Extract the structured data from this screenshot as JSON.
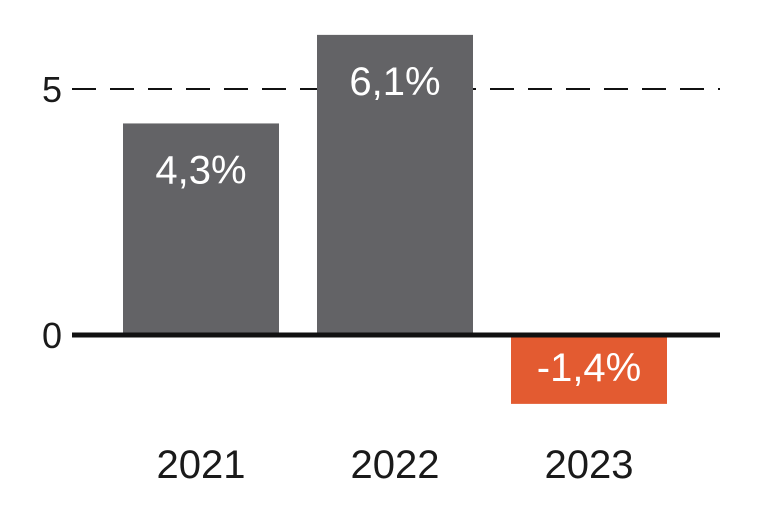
{
  "chart_data": {
    "type": "bar",
    "categories": [
      "2021",
      "2022",
      "2023"
    ],
    "values": [
      4.3,
      6.1,
      -1.4
    ],
    "data_labels": [
      "4,3%",
      "6,1%",
      "-1,4%"
    ],
    "title": "",
    "xlabel": "",
    "ylabel": "",
    "ylim": [
      -1.9,
      6.2
    ],
    "yticks": [
      0,
      5
    ],
    "ytick_labels": [
      "0",
      "5"
    ],
    "grid": "dashed line at 5",
    "colors": {
      "positive": "#636366",
      "negative": "#e35b31",
      "axis": "#111111",
      "grid": "#111111",
      "text": "#1a1a1a",
      "label_text": "#ffffff"
    }
  }
}
